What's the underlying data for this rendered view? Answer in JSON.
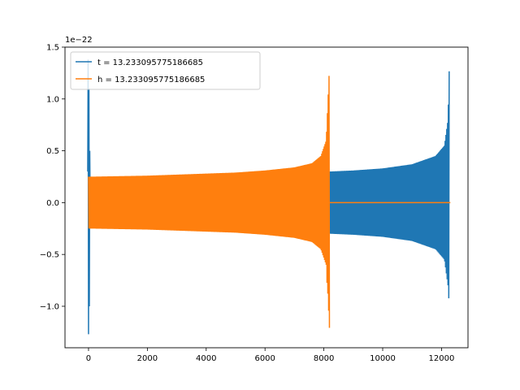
{
  "chart_data": {
    "type": "line",
    "title": "",
    "xlabel": "",
    "ylabel": "",
    "y_offset_label": "1e−22",
    "xlim": [
      -800,
      12900
    ],
    "ylim": [
      -1.4,
      1.5
    ],
    "x_ticks": [
      0,
      2000,
      4000,
      6000,
      8000,
      10000,
      12000
    ],
    "x_tick_labels": [
      "0",
      "2000",
      "4000",
      "6000",
      "8000",
      "10000",
      "12000"
    ],
    "y_ticks": [
      -1.0,
      -0.5,
      0.0,
      0.5,
      1.0,
      1.5
    ],
    "y_tick_labels": [
      "−1.0",
      "−0.5",
      "0.0",
      "0.5",
      "1.0",
      "1.5"
    ],
    "grid": false,
    "legend_position": "upper-left",
    "series": [
      {
        "name": "t = 13.233095775186685",
        "color": "#1f77b4",
        "description_of_shape": "ringdown spike near x=0, then chirp envelope from x≈8200 to x≈12270",
        "envelope": {
          "x": [
            8200,
            9000,
            10000,
            11000,
            11800,
            12100,
            12220,
            12270
          ],
          "amplitude": [
            0.3,
            0.31,
            0.33,
            0.37,
            0.45,
            0.55,
            0.8,
            1.38
          ],
          "min_amplitude_end": 1.15
        },
        "start_spike": {
          "x": 0,
          "max": 1.38,
          "min": -1.27
        },
        "x_end": 12270
      },
      {
        "name": "h = 13.233095775186685",
        "color": "#ff7f0e",
        "envelope": {
          "x": [
            0,
            1000,
            2000,
            3000,
            4000,
            5000,
            6000,
            7000,
            7600,
            7900,
            8080,
            8200
          ],
          "amplitude": [
            0.25,
            0.255,
            0.26,
            0.27,
            0.28,
            0.29,
            0.31,
            0.34,
            0.38,
            0.45,
            0.6,
            1.38
          ],
          "min_amplitude_end": 1.27
        },
        "flat_after": {
          "x_start": 8200,
          "x_end": 12300,
          "value": 0.0
        }
      }
    ]
  }
}
